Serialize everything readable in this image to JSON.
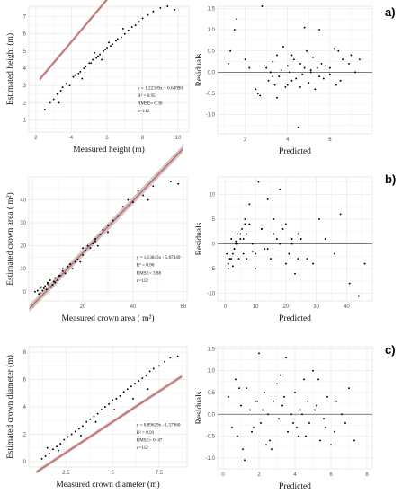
{
  "chart_data": [
    {
      "type": "scatter",
      "xlabel": "Measured height (m)",
      "ylabel": "Estimated height (m)",
      "xlim": [
        1.6,
        10.6
      ],
      "ylim": [
        0.3,
        7.6
      ],
      "xticks": [
        2,
        4,
        6,
        8,
        10
      ],
      "yticks": [
        1,
        2,
        3,
        4,
        5,
        6,
        7
      ],
      "fit": {
        "slope": 1.22369,
        "intercept": 0.6499
      },
      "ci_halfwidth": 0.12,
      "annotations": [
        "y = 1.22369x + 0.64990",
        "R² = 0.95",
        "RMSE= 0.36",
        "n=112"
      ],
      "grid": true,
      "x": [
        2.5,
        2.8,
        3.0,
        3.2,
        3.4,
        3.5,
        3.7,
        3.9,
        4.1,
        4.2,
        4.4,
        4.5,
        4.7,
        4.8,
        5.0,
        5.1,
        5.2,
        5.4,
        5.5,
        5.6,
        5.8,
        5.9,
        6.0,
        6.2,
        6.3,
        6.5,
        6.6,
        6.8,
        7.0,
        7.2,
        7.4,
        7.6,
        7.8,
        8.0,
        8.3,
        8.6,
        9.0,
        9.4,
        9.8,
        4.6,
        5.3,
        6.1,
        3.3,
        5.7,
        6.9
      ],
      "y": [
        1.6,
        2.0,
        2.2,
        2.5,
        2.7,
        2.9,
        3.1,
        3.0,
        3.5,
        3.6,
        3.7,
        3.8,
        4.0,
        4.1,
        4.3,
        4.3,
        4.5,
        4.6,
        4.7,
        4.8,
        5.0,
        5.1,
        5.2,
        5.3,
        5.4,
        5.6,
        5.7,
        5.8,
        6.0,
        6.2,
        6.4,
        6.5,
        6.7,
        6.9,
        7.1,
        7.3,
        7.5,
        7.6,
        7.4,
        3.4,
        4.9,
        5.5,
        2.0,
        4.5,
        6.3
      ]
    },
    {
      "type": "scatter",
      "xlabel": "Predicted",
      "ylabel": "Residuals",
      "xlim": [
        0.7,
        8.0
      ],
      "ylim": [
        -1.45,
        1.55
      ],
      "xticks": [
        2,
        4,
        6
      ],
      "yticks": [
        -1.0,
        -0.5,
        0.0,
        0.5,
        1.0,
        1.5
      ],
      "hline": 0,
      "grid": true,
      "x": [
        1.5,
        1.6,
        2.0,
        2.2,
        2.5,
        2.6,
        2.8,
        3.0,
        3.1,
        3.2,
        3.3,
        3.4,
        3.5,
        3.6,
        3.7,
        3.8,
        3.9,
        4.0,
        4.1,
        4.2,
        4.3,
        4.4,
        4.5,
        4.6,
        4.7,
        4.8,
        4.9,
        5.0,
        5.1,
        5.2,
        5.3,
        5.4,
        5.5,
        5.6,
        5.8,
        6.0,
        6.2,
        6.4,
        6.6,
        7.0,
        7.4,
        1.2,
        1.3,
        2.7,
        3.5,
        4.0,
        4.8,
        5.5,
        6.0,
        6.5,
        7.2,
        2.9,
        3.3,
        4.2,
        4.6,
        5.1,
        5.7,
        6.3,
        6.9
      ],
      "y": [
        1.0,
        1.25,
        0.3,
        0.1,
        -0.4,
        -0.5,
        1.55,
        0.1,
        -0.2,
        0.0,
        0.25,
        -0.3,
        0.4,
        -0.1,
        0.05,
        0.6,
        -0.35,
        0.15,
        0.0,
        -0.2,
        0.3,
        -0.15,
        -1.3,
        0.2,
        -0.05,
        0.1,
        0.5,
        -0.25,
        0.0,
        0.35,
        -0.4,
        0.1,
        -0.1,
        0.2,
        0.15,
        -0.05,
        0.55,
        0.5,
        0.3,
        0.4,
        0.3,
        0.2,
        0.5,
        -0.55,
        -0.6,
        -0.3,
        1.05,
        1.0,
        0.1,
        -0.2,
        0.0,
        0.15,
        -0.1,
        0.4,
        -0.35,
        0.05,
        -0.15,
        -0.3,
        0.2
      ]
    },
    {
      "type": "scatter",
      "xlabel": "Measured crown area ( m²)",
      "ylabel": "Estimated crown area ( m²)",
      "xlim": [
        -1.5,
        61.5
      ],
      "ylim": [
        -4,
        50
      ],
      "xticks": [
        0,
        20,
        40,
        60
      ],
      "yticks": [
        0,
        10,
        20,
        30,
        40
      ],
      "fit": {
        "slope": 1.13843,
        "intercept": -5.87349
      },
      "ci_halfwidth": 1.6,
      "annotations": [
        "y = 1.13843x - 5.87349",
        "R² = 0.90",
        "RMSE= 3.88",
        "n=112"
      ],
      "grid": true,
      "x": [
        1,
        2,
        2.5,
        3,
        3.5,
        4,
        5,
        5.5,
        6,
        6.5,
        7,
        8,
        8.5,
        9,
        10,
        10.5,
        11,
        12,
        13,
        14,
        15,
        16,
        17,
        18,
        19,
        20,
        21,
        22,
        23,
        24,
        25,
        26,
        27,
        28,
        30,
        32,
        34,
        36,
        38,
        40,
        42,
        44,
        46,
        48,
        55,
        58,
        3,
        4.5,
        6,
        7.5,
        9,
        12,
        15,
        20,
        25,
        30
      ],
      "y": [
        0,
        0.5,
        -1,
        1.5,
        2,
        0.5,
        2.5,
        1,
        4,
        3,
        5,
        3,
        4.5,
        6,
        5,
        7,
        7,
        9,
        8,
        11,
        12,
        10,
        13,
        14,
        13,
        16,
        18,
        20,
        19,
        21,
        23,
        20,
        25,
        27,
        29,
        31,
        33,
        37,
        40,
        39,
        44,
        42,
        40,
        46,
        48,
        47,
        -0.5,
        1.5,
        3.5,
        2,
        4,
        10,
        12,
        19,
        22,
        26
      ]
    },
    {
      "type": "scatter",
      "xlabel": "Predicted",
      "ylabel": "Residuals",
      "xlim": [
        -2.5,
        48.5
      ],
      "ylim": [
        -11.5,
        13.5
      ],
      "xticks": [
        0,
        10,
        20,
        30,
        40
      ],
      "yticks": [
        -10,
        -5,
        0,
        5,
        10
      ],
      "hline": 0,
      "grid": true,
      "x": [
        0.5,
        1,
        1.5,
        2,
        2.5,
        3,
        3.5,
        4,
        4.5,
        5,
        5.5,
        6,
        6.5,
        7,
        8,
        9,
        10,
        11,
        12,
        13,
        14,
        15,
        16,
        17,
        18,
        19,
        20,
        21,
        22,
        23,
        24,
        25,
        27,
        29,
        31,
        33,
        36,
        38,
        41,
        44,
        46,
        1,
        2,
        3,
        4,
        5,
        6,
        7,
        8,
        10,
        12,
        14,
        16,
        18,
        20,
        22,
        24,
        2.5,
        3.5,
        6.5,
        9
      ],
      "y": [
        -2,
        -4,
        -3,
        1,
        -2,
        -1,
        0,
        2,
        -3,
        1,
        3,
        -2,
        4,
        2,
        8,
        0,
        -5,
        12.5,
        3,
        -1,
        9,
        -3,
        5,
        1,
        11,
        3,
        4,
        -2,
        0,
        -6,
        2,
        1,
        -3,
        -4,
        5,
        1,
        -2,
        6,
        -8,
        -10.5,
        -4,
        -5,
        -3,
        -1,
        0,
        2,
        1,
        -3,
        4,
        -2,
        3,
        -1,
        2,
        0,
        -4,
        1,
        -3,
        -4.5,
        0.5,
        5,
        -1.5
      ]
    },
    {
      "type": "scatter",
      "xlabel": "Measured crown diameter (m)",
      "ylabel": "Estimated crown diameter (m)",
      "xlim": [
        0.5,
        9.0
      ],
      "ylim": [
        -0.4,
        8.4
      ],
      "xticks": [
        2.5,
        5,
        7.5
      ],
      "yticks": [
        0,
        2,
        4,
        6,
        8
      ],
      "fit": {
        "slope": 0.89629,
        "intercept": -1.5796
      },
      "ci_halfwidth": 0.14,
      "annotations": [
        "y = 0.89629x - 1.57960",
        "R² = 0.91",
        "RMSE= 0. 47",
        "n=112"
      ],
      "grid": true,
      "x": [
        1.2,
        1.4,
        1.6,
        1.8,
        2.0,
        2.2,
        2.4,
        2.6,
        2.8,
        3.0,
        3.2,
        3.4,
        3.6,
        3.8,
        4.0,
        4.2,
        4.4,
        4.6,
        4.8,
        5.0,
        5.2,
        5.4,
        5.6,
        5.8,
        6.0,
        6.2,
        6.4,
        6.6,
        6.8,
        7.0,
        7.2,
        7.5,
        7.8,
        8.1,
        8.5,
        2.1,
        3.3,
        4.1,
        5.1,
        6.1,
        6.9,
        1.5
      ],
      "y": [
        0.2,
        0.4,
        0.6,
        0.9,
        1.1,
        1.3,
        1.6,
        1.8,
        2.0,
        2.2,
        2.4,
        2.6,
        2.9,
        3.1,
        3.3,
        3.5,
        3.8,
        4.0,
        4.2,
        4.5,
        4.6,
        4.8,
        5.1,
        5.3,
        5.5,
        5.7,
        5.9,
        6.1,
        6.3,
        6.6,
        6.8,
        7.0,
        7.3,
        7.6,
        7.7,
        0.8,
        1.9,
        2.9,
        3.8,
        4.6,
        5.3,
        1.0
      ]
    },
    {
      "type": "scatter",
      "xlabel": "Predicted",
      "ylabel": "Residuals",
      "xlim": [
        -0.3,
        8.3
      ],
      "ylim": [
        -1.25,
        1.55
      ],
      "xticks": [
        0,
        2,
        4,
        6,
        8
      ],
      "yticks": [
        -1.0,
        -0.5,
        0.0,
        0.5,
        1.0,
        1.5
      ],
      "hline": 0,
      "grid": true,
      "x": [
        0.3,
        0.5,
        0.7,
        0.8,
        1.0,
        1.1,
        1.3,
        1.5,
        1.6,
        1.8,
        2.0,
        2.1,
        2.3,
        2.5,
        2.6,
        2.8,
        3.0,
        3.1,
        3.3,
        3.5,
        3.6,
        3.8,
        4.0,
        4.1,
        4.3,
        4.5,
        4.6,
        4.8,
        5.0,
        5.2,
        5.4,
        5.6,
        5.8,
        6.0,
        6.3,
        6.6,
        7.0,
        7.3,
        1.2,
        1.9,
        2.4,
        3.2,
        3.9,
        4.4,
        5.1,
        5.7,
        6.2,
        0.9,
        2.7,
        4.7,
        6.8,
        1.7,
        3.4,
        4.2,
        5.3,
        2.2
      ],
      "y": [
        0.4,
        -0.3,
        0.8,
        -0.5,
        0.2,
        -0.8,
        0.6,
        0.1,
        -0.4,
        0.3,
        1.4,
        -0.2,
        0.5,
        0.0,
        -0.6,
        0.3,
        0.7,
        -0.1,
        0.2,
        1.3,
        -0.4,
        0.0,
        0.5,
        -0.3,
        0.1,
        0.8,
        -0.5,
        -0.2,
        1.0,
        0.2,
        -0.6,
        -0.1,
        0.4,
        -0.7,
        0.3,
        0.0,
        0.6,
        -0.6,
        -1.05,
        0.3,
        -0.7,
        0.9,
        -0.2,
        0.0,
        0.1,
        -0.3,
        -0.4,
        0.6,
        -0.8,
        0.3,
        -0.2,
        -0.3,
        0.4,
        -0.5,
        0.8,
        0.1
      ]
    }
  ],
  "labels": [
    "a)",
    "b)",
    "c)"
  ]
}
